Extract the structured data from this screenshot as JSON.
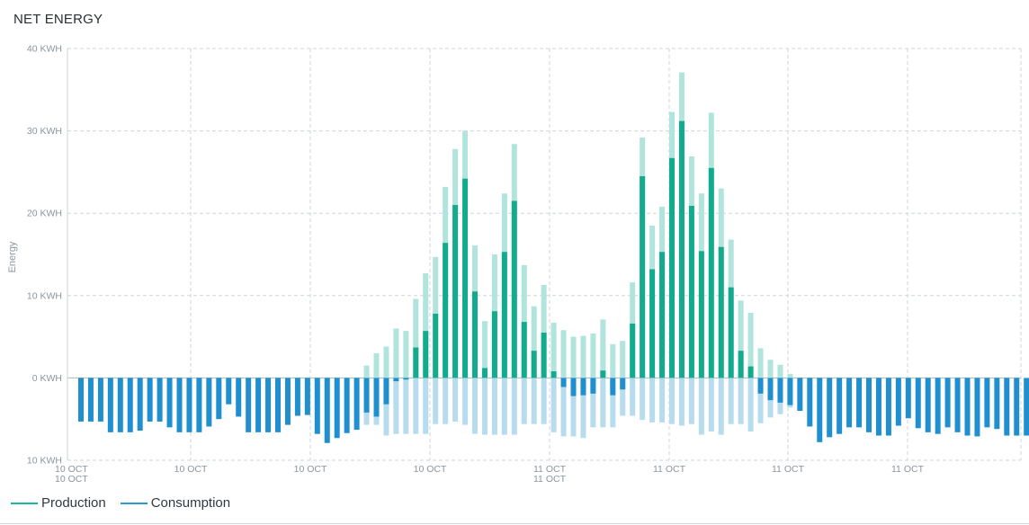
{
  "header": {
    "title": "NET ENERGY"
  },
  "legend": [
    {
      "label": "Production",
      "color": "#19b7a6"
    },
    {
      "label": "Consumption",
      "color": "#2a98d2"
    }
  ],
  "colors": {
    "production": "#12ab8d",
    "production_total": "#b0e4dc",
    "consumption": "#1f8fcf",
    "consumption_total": "#b6dcee",
    "grid": "#cfd6db",
    "axis_text": "#8a969e"
  },
  "chart_data": {
    "type": "bar",
    "ylabel": "Energy",
    "ylim": [
      -10,
      40
    ],
    "yticks": [
      40,
      30,
      20,
      10,
      0,
      -10
    ],
    "ytick_labels": [
      "40 KWH",
      "30 KWH",
      "20 KWH",
      "10 KWH",
      "0 KWH",
      "10 KWH"
    ],
    "xtick_labels": [
      [
        "10 OCT",
        "10 OCT"
      ],
      [
        "10 OCT"
      ],
      [
        "10 OCT"
      ],
      [
        "10 OCT"
      ],
      [
        "11 OCT",
        "11 OCT"
      ],
      [
        "11 OCT"
      ],
      [
        "11 OCT"
      ],
      [
        "11 OCT"
      ]
    ],
    "grid": true,
    "stacked_overlay": true,
    "series": [
      {
        "name": "Production",
        "values": [
          0,
          0,
          0,
          0,
          0,
          0,
          0,
          0,
          0,
          0,
          0,
          0,
          0,
          0,
          0,
          0,
          0,
          0,
          0,
          0,
          0,
          0,
          0,
          0,
          0,
          0,
          0,
          0,
          0,
          1.5,
          3,
          3.8,
          6,
          5.7,
          9.6,
          12.7,
          14.7,
          23.2,
          27.8,
          30,
          16.1,
          6.9,
          15,
          22.4,
          28.4,
          13.7,
          8.7,
          11.3,
          6.7,
          5.8,
          5,
          5.1,
          5.4,
          7.1,
          4.1,
          4.5,
          11.6,
          29.2,
          18.5,
          20.8,
          32.3,
          37.1,
          26.9,
          22.4,
          32.2,
          23.0,
          16.8,
          9.4,
          7.9,
          3.6,
          2.2,
          1.6,
          0.5,
          0,
          0,
          0,
          0,
          0,
          0,
          0,
          0,
          0,
          0,
          0,
          0,
          0,
          0,
          0,
          0,
          0,
          0,
          0,
          0,
          0,
          0,
          0,
          0,
          0,
          0,
          0,
          0,
          0
        ]
      },
      {
        "name": "Consumption",
        "values": [
          -5.3,
          -5.3,
          -5.3,
          -6.6,
          -6.6,
          -6.6,
          -6.4,
          -5.3,
          -5.3,
          -6.0,
          -6.6,
          -6.6,
          -6.6,
          -5.9,
          -5.0,
          -3.2,
          -4.7,
          -6.6,
          -6.6,
          -6.6,
          -6.6,
          -5.7,
          -4.6,
          -4.5,
          -6.8,
          -7.9,
          -7.3,
          -6.7,
          -6.3,
          -5.7,
          -5.7,
          -7.0,
          -6.8,
          -6.8,
          -6.8,
          -6.8,
          -5.6,
          -5.6,
          -5.3,
          -5.7,
          -6.8,
          -6.9,
          -6.9,
          -6.9,
          -6.9,
          -5.6,
          -5.6,
          -5.6,
          -6.6,
          -7.1,
          -7.1,
          -7.3,
          -6.0,
          -6.0,
          -6.0,
          -4.6,
          -4.6,
          -5.1,
          -5.4,
          -5.4,
          -5.6,
          -5.8,
          -5.6,
          -6.9,
          -6.5,
          -6.9,
          -5.6,
          -5.6,
          -6.5,
          -5.5,
          -4.8,
          -4.4,
          -3.6,
          -4.0,
          -5.9,
          -7.8,
          -7.2,
          -6.8,
          -6.0,
          -6.0,
          -6.6,
          -7.0,
          -7.0,
          -5.8,
          -4.9,
          -6.1,
          -6.6,
          -6.8,
          -6.0,
          -6.6,
          -7.0,
          -7.1,
          -6.0,
          -6.2,
          -7.0,
          -7.0,
          -7.0,
          -6.9,
          -5.6,
          -3.7,
          -3.6
        ]
      },
      {
        "name": "Net",
        "values": [
          -5.3,
          -5.3,
          -5.3,
          -6.6,
          -6.6,
          -6.6,
          -6.4,
          -5.3,
          -5.3,
          -6.0,
          -6.6,
          -6.6,
          -6.6,
          -5.9,
          -5.0,
          -3.2,
          -4.7,
          -6.6,
          -6.6,
          -6.6,
          -6.6,
          -5.7,
          -4.6,
          -4.5,
          -6.8,
          -7.9,
          -7.3,
          -6.7,
          -6.3,
          -4.2,
          -4.7,
          -3.2,
          -0.4,
          -0.2,
          3.7,
          5.7,
          7.8,
          16.4,
          21.0,
          24.2,
          10.5,
          1.2,
          8.1,
          15.3,
          21.5,
          6.8,
          3.3,
          5.5,
          0.8,
          -1.1,
          -2.2,
          -2.1,
          -1.9,
          0.9,
          -2.1,
          -1.4,
          6.6,
          24.5,
          13.2,
          15.3,
          26.7,
          31.2,
          20.9,
          15.4,
          25.5,
          15.9,
          11.0,
          3.3,
          1.4,
          -1.9,
          -2.7,
          -3.0,
          -3.3,
          -4.0,
          -5.9,
          -7.8,
          -7.2,
          -6.8,
          -6.0,
          -6.0,
          -6.6,
          -7.0,
          -7.0,
          -5.8,
          -4.9,
          -6.1,
          -6.6,
          -6.8,
          -6.0,
          -6.6,
          -7.0,
          -7.1,
          -6.0,
          -6.2,
          -7.0,
          -7.0,
          -7.0,
          -6.9,
          -5.6,
          -3.7,
          -3.6
        ]
      }
    ]
  }
}
